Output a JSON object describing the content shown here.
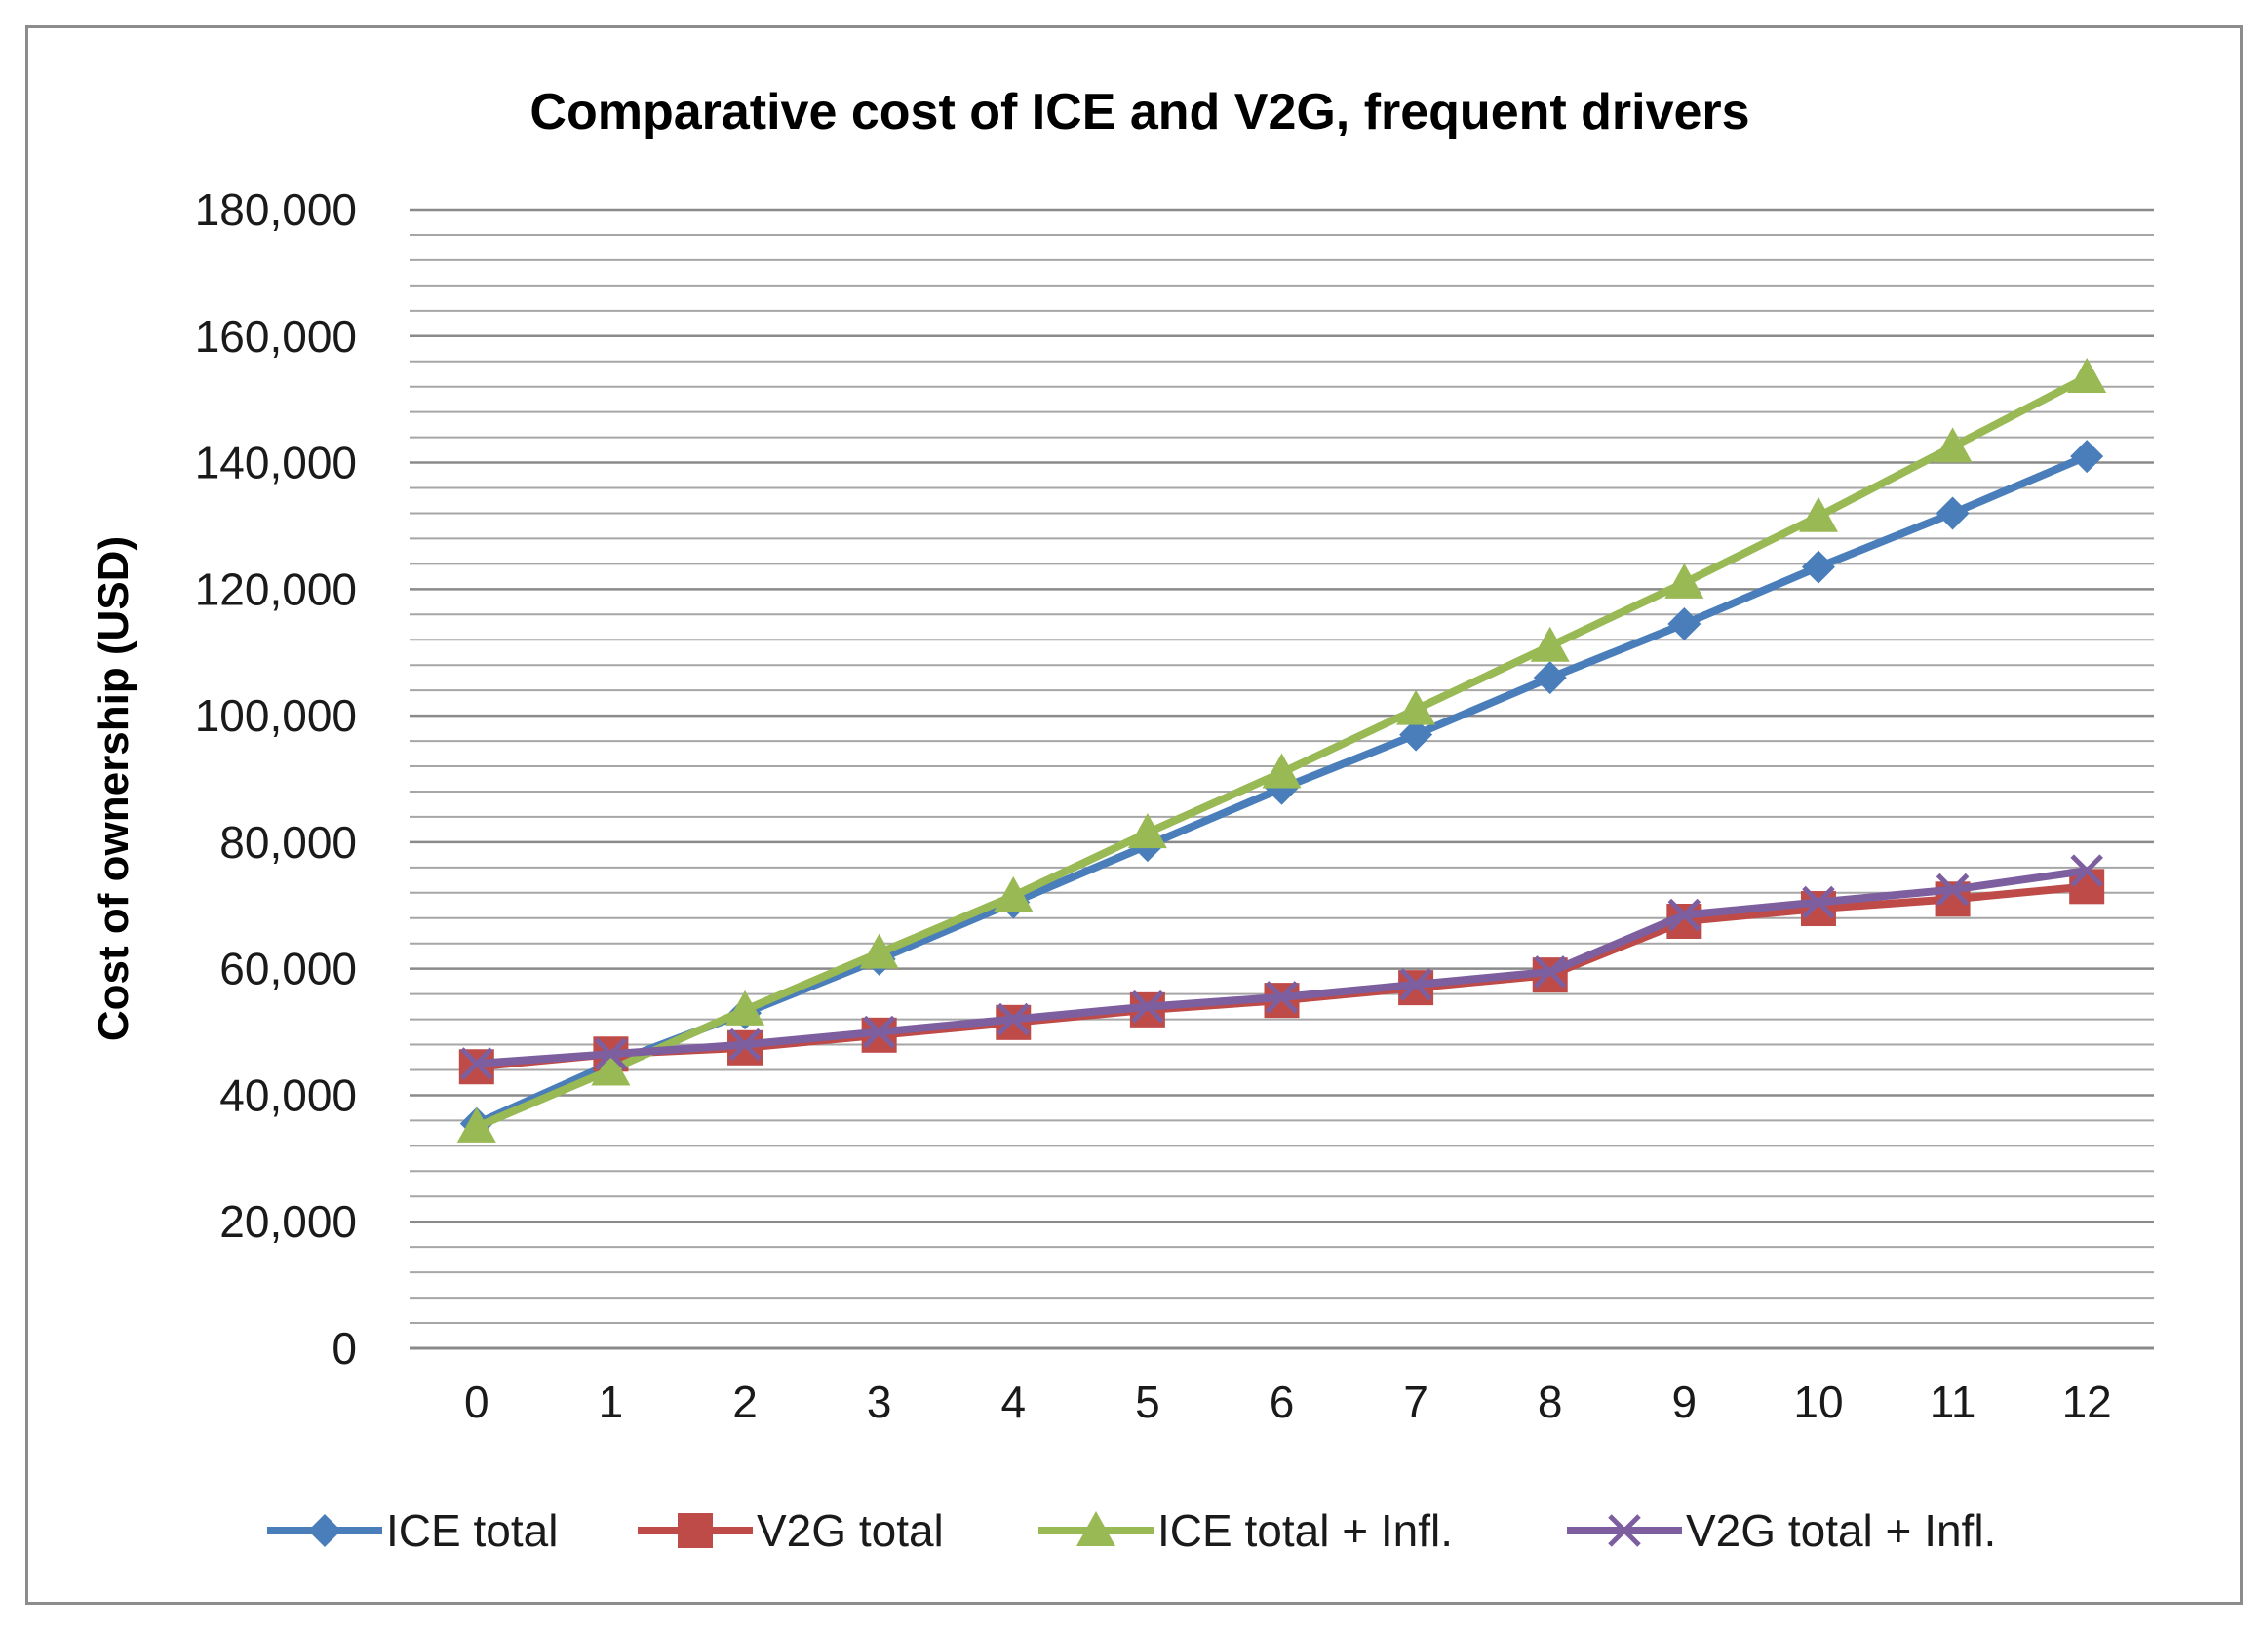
{
  "chart_data": {
    "type": "line",
    "title": "Comparative cost of ICE and V2G, frequent drivers",
    "xlabel": "",
    "ylabel": "Cost of ownership (USD)",
    "ylim": [
      0,
      180000
    ],
    "y_major_step": 20000,
    "y_minor_step": 4000,
    "yticks": [
      "0",
      "20,000",
      "40,000",
      "60,000",
      "80,000",
      "100,000",
      "120,000",
      "140,000",
      "160,000",
      "180,000"
    ],
    "categories": [
      "0",
      "1",
      "2",
      "3",
      "4",
      "5",
      "6",
      "7",
      "8",
      "9",
      "10",
      "11",
      "12"
    ],
    "grid": true,
    "legend_position": "bottom",
    "series": [
      {
        "name": "ICE total",
        "color": "#4a7ebb",
        "marker": "diamond",
        "values": [
          35500,
          45000,
          53000,
          61500,
          70500,
          79500,
          88500,
          97000,
          106000,
          114500,
          123500,
          132000,
          141000
        ]
      },
      {
        "name": "V2G total",
        "color": "#be4b48",
        "marker": "square",
        "values": [
          44500,
          46500,
          47500,
          49500,
          51500,
          53500,
          55000,
          57000,
          59000,
          67500,
          69500,
          71000,
          73000
        ]
      },
      {
        "name": "ICE total + Infl.",
        "color": "#98b954",
        "marker": "triangle",
        "values": [
          35000,
          44000,
          53500,
          62500,
          71500,
          81500,
          91000,
          101000,
          111000,
          121000,
          131500,
          142500,
          153500
        ]
      },
      {
        "name": "V2G total + Infl.",
        "color": "#7d5fa0",
        "marker": "x",
        "values": [
          45000,
          46500,
          48000,
          50000,
          52000,
          54000,
          55500,
          57500,
          59500,
          68500,
          70500,
          72500,
          75500
        ]
      }
    ]
  }
}
